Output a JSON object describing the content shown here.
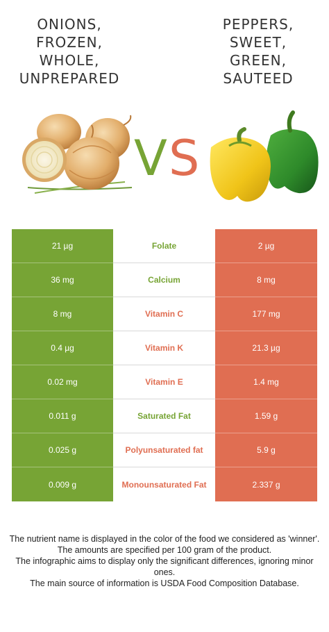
{
  "left_food": {
    "title_lines": [
      "ONIONS,",
      "FROZEN,",
      "WHOLE,",
      "UNPREPARED"
    ],
    "color": "#77a435"
  },
  "right_food": {
    "title_lines": [
      "PEPPERS,",
      "SWEET,",
      "GREEN,",
      "SAUTEED"
    ],
    "color": "#e06e52"
  },
  "vs": {
    "v": "V",
    "s": "S"
  },
  "nutrients": [
    {
      "left": "21 µg",
      "name": "Folate",
      "right": "2 µg",
      "winner": "left"
    },
    {
      "left": "36 mg",
      "name": "Calcium",
      "right": "8 mg",
      "winner": "left"
    },
    {
      "left": "8 mg",
      "name": "Vitamin C",
      "right": "177 mg",
      "winner": "right"
    },
    {
      "left": "0.4 µg",
      "name": "Vitamin K",
      "right": "21.3 µg",
      "winner": "right"
    },
    {
      "left": "0.02 mg",
      "name": "Vitamin E",
      "right": "1.4 mg",
      "winner": "right"
    },
    {
      "left": "0.011 g",
      "name": "Saturated Fat",
      "right": "1.59 g",
      "winner": "left"
    },
    {
      "left": "0.025 g",
      "name": "Polyunsaturated fat",
      "right": "5.9 g",
      "winner": "right"
    },
    {
      "left": "0.009 g",
      "name": "Monounsaturated Fat",
      "right": "2.337 g",
      "winner": "right"
    }
  ],
  "footer": [
    "The nutrient name is displayed in the color of the food we considered as 'winner'.",
    "The amounts are specified per 100 gram of the product.",
    "The infographic aims to display only the significant differences, ignoring minor ones.",
    "The main source of information is USDA Food Composition Database."
  ]
}
